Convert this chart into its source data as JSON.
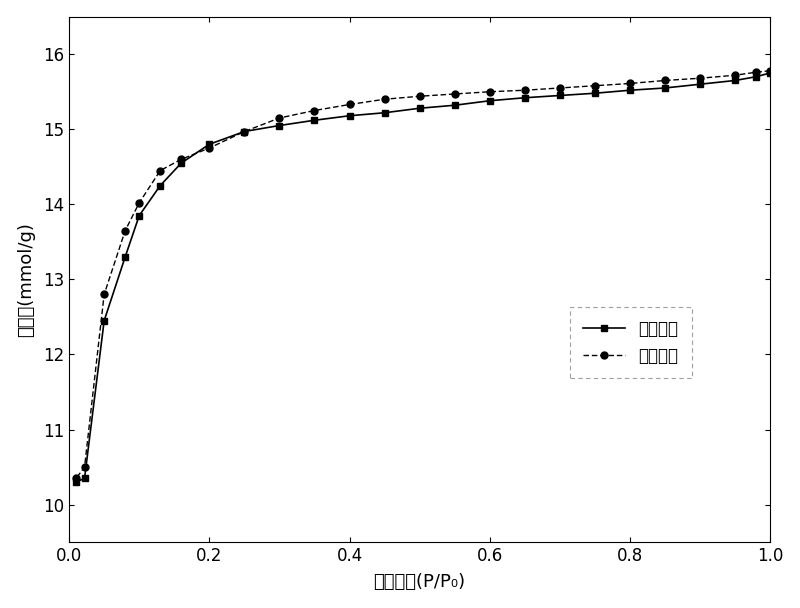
{
  "adsorption_x": [
    0.01,
    0.022,
    0.05,
    0.08,
    0.1,
    0.13,
    0.16,
    0.2,
    0.25,
    0.3,
    0.35,
    0.4,
    0.45,
    0.5,
    0.55,
    0.6,
    0.65,
    0.7,
    0.75,
    0.8,
    0.85,
    0.9,
    0.95,
    0.98,
    1.0
  ],
  "adsorption_y": [
    10.3,
    10.35,
    12.45,
    13.3,
    13.85,
    14.25,
    14.55,
    14.8,
    14.97,
    15.05,
    15.12,
    15.18,
    15.22,
    15.28,
    15.32,
    15.38,
    15.42,
    15.45,
    15.48,
    15.52,
    15.55,
    15.6,
    15.65,
    15.7,
    15.75
  ],
  "desorption_x": [
    1.0,
    0.98,
    0.95,
    0.9,
    0.85,
    0.8,
    0.75,
    0.7,
    0.65,
    0.6,
    0.55,
    0.5,
    0.45,
    0.4,
    0.35,
    0.3,
    0.25,
    0.2,
    0.16,
    0.13,
    0.1,
    0.08,
    0.05,
    0.022,
    0.01
  ],
  "desorption_y": [
    15.78,
    15.76,
    15.72,
    15.68,
    15.65,
    15.61,
    15.58,
    15.55,
    15.52,
    15.5,
    15.47,
    15.44,
    15.4,
    15.33,
    15.25,
    15.15,
    14.97,
    14.75,
    14.6,
    14.45,
    14.02,
    13.65,
    12.8,
    10.5,
    10.35
  ],
  "color": "#000000",
  "xlabel": "相对压力(P/P₀)",
  "ylabel": "吸附量(mmol/g)",
  "legend_adsorption": "吸附曲线",
  "legend_desorption": "脱附曲线",
  "xlim": [
    0.0,
    1.0
  ],
  "ylim": [
    9.5,
    16.5
  ],
  "yticks": [
    10,
    11,
    12,
    13,
    14,
    15,
    16
  ],
  "xticks": [
    0.0,
    0.2,
    0.4,
    0.6,
    0.8,
    1.0
  ],
  "background_color": "#ffffff"
}
